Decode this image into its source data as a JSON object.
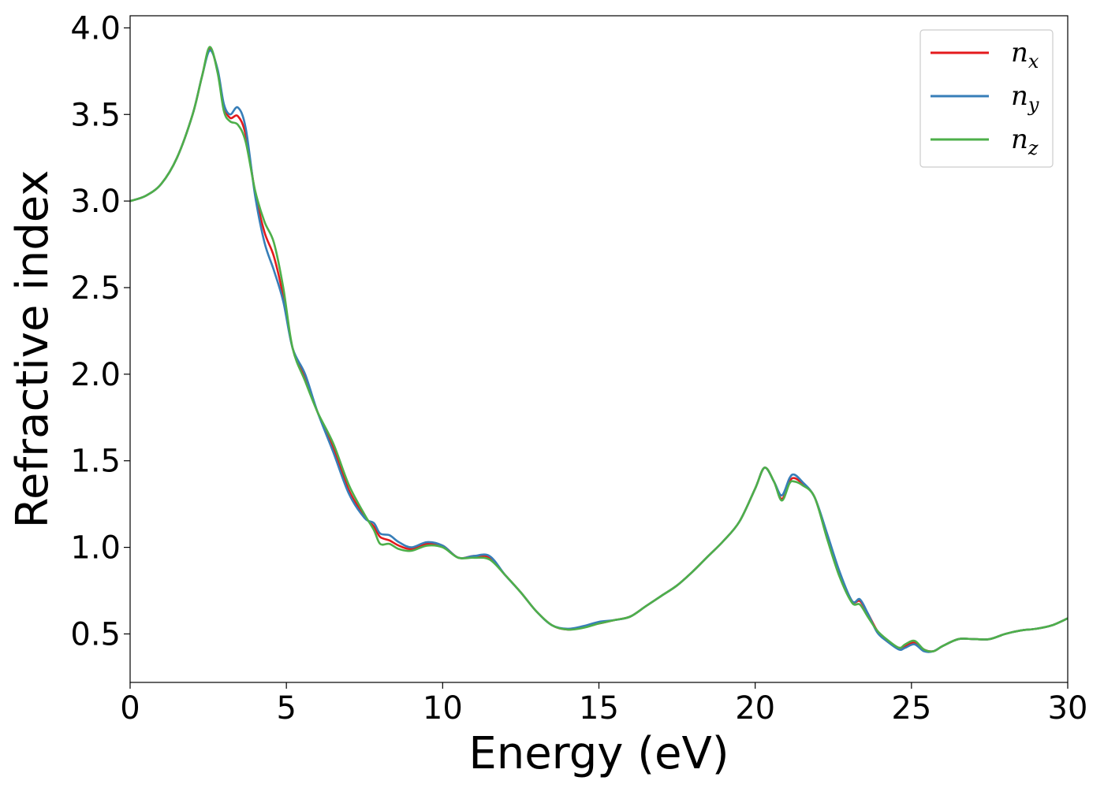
{
  "chart_data": {
    "type": "line",
    "xlabel": "Energy (eV)",
    "ylabel": "Refractive index",
    "xlim": [
      0,
      30
    ],
    "ylim": [
      0.22,
      4.07
    ],
    "xticks": [
      0,
      5,
      10,
      15,
      20,
      25,
      30
    ],
    "xtick_labels": [
      "0",
      "5",
      "10",
      "15",
      "20",
      "25",
      "30"
    ],
    "yticks": [
      0.5,
      1.0,
      1.5,
      2.0,
      2.5,
      3.0,
      3.5,
      4.0
    ],
    "ytick_labels": [
      "0.5",
      "1.0",
      "1.5",
      "2.0",
      "2.5",
      "3.0",
      "3.5",
      "4.0"
    ],
    "grid": false,
    "legend_position": "top-right",
    "series": [
      {
        "name": "n_x",
        "label_base": "n",
        "label_sub": "x",
        "color": "#e41a1c",
        "x": [
          0,
          0.5,
          1,
          1.5,
          2,
          2.3,
          2.55,
          2.8,
          3.0,
          3.2,
          3.45,
          3.7,
          4.0,
          4.3,
          4.6,
          4.9,
          5.2,
          5.6,
          6.0,
          6.5,
          7.0,
          7.5,
          7.8,
          8.0,
          8.3,
          8.6,
          9.0,
          9.5,
          10.0,
          10.5,
          11.0,
          11.5,
          12.0,
          12.5,
          13.0,
          13.5,
          14.0,
          14.5,
          15.0,
          15.5,
          16.0,
          16.5,
          17.0,
          17.5,
          18.0,
          18.5,
          19.0,
          19.5,
          20.0,
          20.3,
          20.6,
          20.85,
          21.1,
          21.25,
          21.5,
          21.9,
          22.3,
          22.7,
          23.1,
          23.35,
          23.6,
          23.9,
          24.2,
          24.6,
          24.8,
          25.1,
          25.4,
          25.7,
          26.0,
          26.5,
          27.0,
          27.5,
          28.0,
          28.5,
          29.0,
          29.5,
          30.0
        ],
        "values": [
          3.0,
          3.03,
          3.1,
          3.25,
          3.5,
          3.72,
          3.88,
          3.75,
          3.55,
          3.48,
          3.49,
          3.38,
          3.05,
          2.82,
          2.68,
          2.45,
          2.15,
          1.98,
          1.78,
          1.58,
          1.33,
          1.18,
          1.12,
          1.06,
          1.04,
          1.01,
          0.99,
          1.02,
          1.01,
          0.94,
          0.95,
          0.94,
          0.84,
          0.74,
          0.63,
          0.55,
          0.525,
          0.54,
          0.56,
          0.58,
          0.6,
          0.66,
          0.72,
          0.78,
          0.86,
          0.95,
          1.04,
          1.15,
          1.34,
          1.46,
          1.38,
          1.28,
          1.38,
          1.4,
          1.37,
          1.29,
          1.06,
          0.85,
          0.69,
          0.69,
          0.62,
          0.52,
          0.46,
          0.42,
          0.43,
          0.45,
          0.41,
          0.4,
          0.43,
          0.47,
          0.47,
          0.47,
          0.5,
          0.52,
          0.53,
          0.55,
          0.59
        ]
      },
      {
        "name": "n_y",
        "label_base": "n",
        "label_sub": "y",
        "color": "#377eb8",
        "x": [
          0,
          0.5,
          1,
          1.5,
          2,
          2.3,
          2.55,
          2.8,
          3.0,
          3.2,
          3.45,
          3.7,
          4.0,
          4.3,
          4.6,
          4.9,
          5.2,
          5.6,
          6.0,
          6.5,
          7.0,
          7.5,
          7.8,
          8.0,
          8.3,
          8.6,
          9.0,
          9.5,
          10.0,
          10.5,
          11.0,
          11.5,
          12.0,
          12.5,
          13.0,
          13.5,
          14.0,
          14.5,
          15.0,
          15.5,
          16.0,
          16.5,
          17.0,
          17.5,
          18.0,
          18.5,
          19.0,
          19.5,
          20.0,
          20.3,
          20.6,
          20.85,
          21.1,
          21.25,
          21.5,
          21.9,
          22.3,
          22.7,
          23.1,
          23.35,
          23.6,
          23.9,
          24.2,
          24.6,
          24.8,
          25.1,
          25.4,
          25.7,
          26.0,
          26.5,
          27.0,
          27.5,
          28.0,
          28.5,
          29.0,
          29.5,
          30.0
        ],
        "values": [
          3.0,
          3.03,
          3.1,
          3.25,
          3.5,
          3.72,
          3.87,
          3.76,
          3.56,
          3.5,
          3.54,
          3.42,
          3.03,
          2.76,
          2.6,
          2.42,
          2.15,
          2.0,
          1.78,
          1.55,
          1.31,
          1.17,
          1.14,
          1.08,
          1.07,
          1.03,
          1.0,
          1.03,
          1.01,
          0.94,
          0.95,
          0.95,
          0.84,
          0.74,
          0.63,
          0.55,
          0.53,
          0.545,
          0.57,
          0.58,
          0.6,
          0.66,
          0.72,
          0.78,
          0.86,
          0.95,
          1.04,
          1.15,
          1.34,
          1.46,
          1.38,
          1.3,
          1.4,
          1.42,
          1.38,
          1.29,
          1.08,
          0.86,
          0.69,
          0.7,
          0.62,
          0.51,
          0.46,
          0.41,
          0.42,
          0.44,
          0.4,
          0.4,
          0.43,
          0.47,
          0.47,
          0.47,
          0.5,
          0.52,
          0.53,
          0.55,
          0.59
        ]
      },
      {
        "name": "n_z",
        "label_base": "n",
        "label_sub": "z",
        "color": "#4daf4a",
        "x": [
          0,
          0.5,
          1,
          1.5,
          2,
          2.3,
          2.55,
          2.8,
          3.0,
          3.2,
          3.45,
          3.7,
          4.0,
          4.3,
          4.6,
          4.9,
          5.2,
          5.6,
          6.0,
          6.5,
          7.0,
          7.5,
          7.8,
          8.0,
          8.3,
          8.6,
          9.0,
          9.5,
          10.0,
          10.5,
          11.0,
          11.5,
          12.0,
          12.5,
          13.0,
          13.5,
          14.0,
          14.5,
          15.0,
          15.5,
          16.0,
          16.5,
          17.0,
          17.5,
          18.0,
          18.5,
          19.0,
          19.5,
          20.0,
          20.3,
          20.6,
          20.85,
          21.1,
          21.25,
          21.5,
          21.9,
          22.3,
          22.7,
          23.1,
          23.35,
          23.6,
          23.9,
          24.2,
          24.6,
          24.8,
          25.1,
          25.4,
          25.7,
          26.0,
          26.5,
          27.0,
          27.5,
          28.0,
          28.5,
          29.0,
          29.5,
          30.0
        ],
        "values": [
          3.0,
          3.03,
          3.1,
          3.25,
          3.5,
          3.72,
          3.89,
          3.74,
          3.52,
          3.46,
          3.44,
          3.34,
          3.06,
          2.88,
          2.76,
          2.5,
          2.15,
          1.96,
          1.78,
          1.6,
          1.36,
          1.19,
          1.1,
          1.02,
          1.02,
          0.99,
          0.98,
          1.01,
          1.0,
          0.94,
          0.94,
          0.93,
          0.84,
          0.74,
          0.63,
          0.55,
          0.525,
          0.535,
          0.56,
          0.58,
          0.6,
          0.66,
          0.72,
          0.78,
          0.86,
          0.95,
          1.04,
          1.15,
          1.34,
          1.46,
          1.38,
          1.27,
          1.37,
          1.38,
          1.36,
          1.29,
          1.05,
          0.83,
          0.68,
          0.67,
          0.6,
          0.52,
          0.47,
          0.42,
          0.44,
          0.46,
          0.41,
          0.4,
          0.43,
          0.47,
          0.47,
          0.47,
          0.5,
          0.52,
          0.53,
          0.55,
          0.59
        ]
      }
    ]
  }
}
